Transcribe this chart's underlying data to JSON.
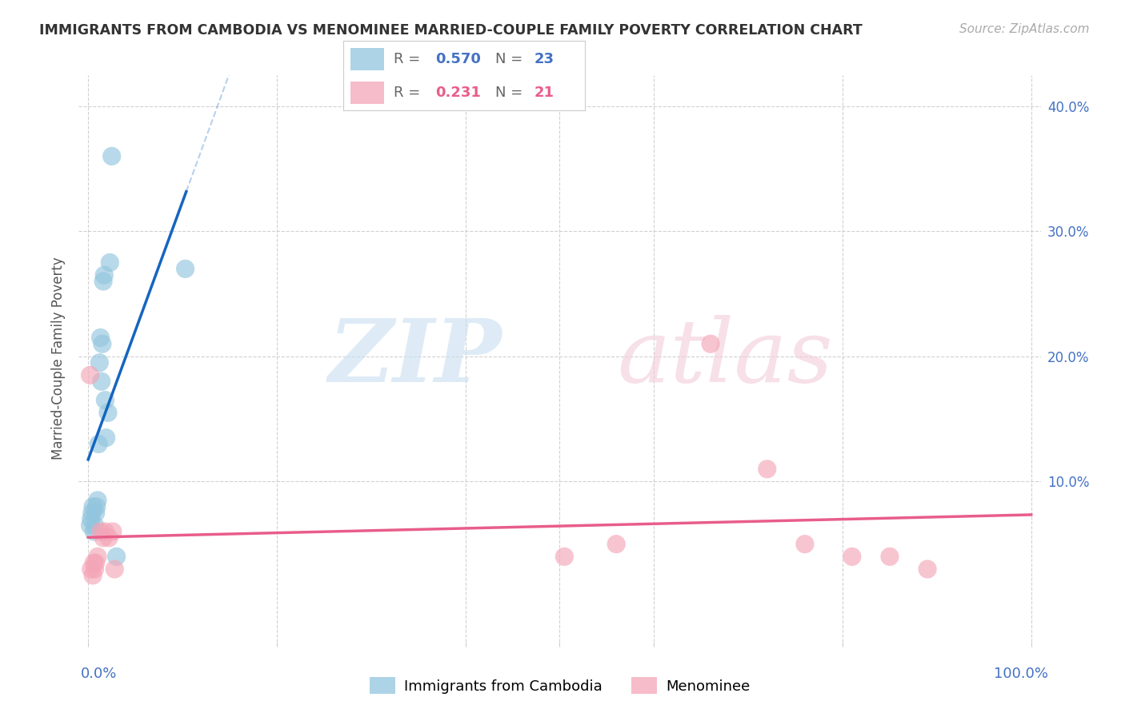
{
  "title": "IMMIGRANTS FROM CAMBODIA VS MENOMINEE MARRIED-COUPLE FAMILY POVERTY CORRELATION CHART",
  "source": "Source: ZipAtlas.com",
  "ylabel": "Married-Couple Family Poverty",
  "blue_color": "#92c5de",
  "pink_color": "#f4a6b8",
  "blue_line_color": "#1565c0",
  "pink_line_color": "#e85d8a",
  "blue_r": "0.570",
  "blue_n": "23",
  "pink_r": "0.231",
  "pink_n": "21",
  "legend_label_blue": "Immigrants from Cambodia",
  "legend_label_pink": "Menominee",
  "blue_scatter_x": [
    0.002,
    0.003,
    0.004,
    0.005,
    0.006,
    0.007,
    0.008,
    0.009,
    0.01,
    0.011,
    0.012,
    0.013,
    0.014,
    0.015,
    0.016,
    0.017,
    0.018,
    0.019,
    0.021,
    0.023,
    0.025,
    0.03,
    0.103
  ],
  "blue_scatter_y": [
    0.065,
    0.07,
    0.075,
    0.08,
    0.06,
    0.065,
    0.075,
    0.08,
    0.085,
    0.13,
    0.195,
    0.215,
    0.18,
    0.21,
    0.26,
    0.265,
    0.165,
    0.135,
    0.155,
    0.275,
    0.36,
    0.04,
    0.27
  ],
  "pink_scatter_x": [
    0.002,
    0.003,
    0.005,
    0.006,
    0.007,
    0.008,
    0.01,
    0.013,
    0.016,
    0.018,
    0.022,
    0.026,
    0.028,
    0.505,
    0.56,
    0.66,
    0.72,
    0.76,
    0.81,
    0.85,
    0.89
  ],
  "pink_scatter_y": [
    0.185,
    0.03,
    0.025,
    0.035,
    0.03,
    0.035,
    0.04,
    0.06,
    0.055,
    0.06,
    0.055,
    0.06,
    0.03,
    0.04,
    0.05,
    0.21,
    0.11,
    0.05,
    0.04,
    0.04,
    0.03
  ],
  "xlim": [
    0.0,
    1.0
  ],
  "ylim": [
    0.0,
    0.42
  ],
  "yticks": [
    0.1,
    0.2,
    0.3,
    0.4
  ],
  "ytick_labels": [
    "10.0%",
    "20.0%",
    "30.0%",
    "40.0%"
  ],
  "xtick_vals": [
    0.0,
    0.2,
    0.4,
    0.5,
    0.6,
    0.8,
    1.0
  ]
}
